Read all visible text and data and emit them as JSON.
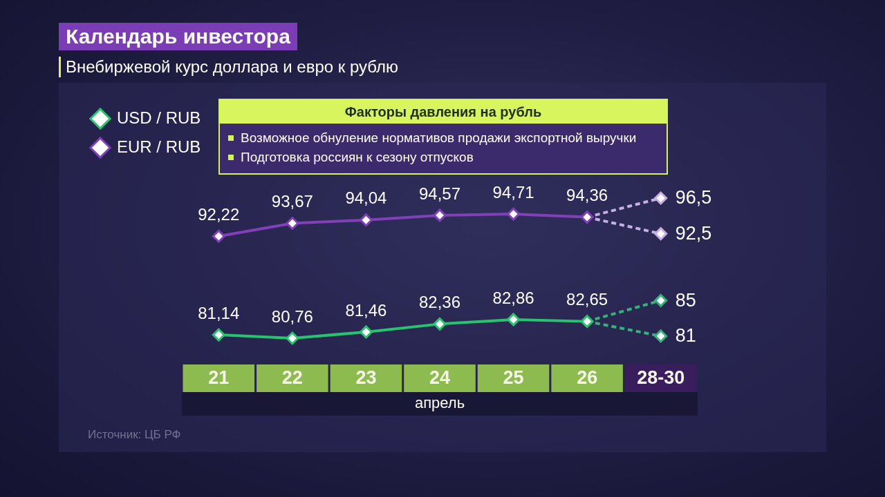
{
  "chart_data": {
    "type": "line",
    "title": "Календарь инвестора",
    "subtitle": "Внебиржевой курс доллара и евро к рублю",
    "xlabel": "апрель",
    "categories": [
      "21",
      "22",
      "23",
      "24",
      "25",
      "26",
      "28-30"
    ],
    "series": [
      {
        "name": "USD / RUB",
        "color": "#27c46e",
        "values": [
          81.14,
          80.76,
          81.46,
          82.36,
          82.86,
          82.65,
          null
        ],
        "value_labels": [
          "81,14",
          "80,76",
          "81,46",
          "82,36",
          "82,86",
          "82,65",
          null
        ]
      },
      {
        "color": "#35b27a",
        "line_style": "dashed",
        "values": [
          null,
          null,
          null,
          null,
          null,
          82.65,
          85
        ],
        "value_labels": [
          null,
          null,
          null,
          null,
          null,
          null,
          "85"
        ]
      },
      {
        "color": "#35b27a",
        "line_style": "dashed",
        "values": [
          null,
          null,
          null,
          null,
          null,
          82.65,
          81
        ],
        "value_labels": [
          null,
          null,
          null,
          null,
          null,
          null,
          "81"
        ]
      },
      {
        "name": "EUR / RUB",
        "color": "#8240b8",
        "values": [
          92.22,
          93.67,
          94.04,
          94.57,
          94.71,
          94.36,
          null
        ],
        "value_labels": [
          "92,22",
          "93,67",
          "94,04",
          "94,57",
          "94,71",
          "94,36",
          null
        ]
      },
      {
        "color": "#c6afe3",
        "line_style": "dashed",
        "values": [
          null,
          null,
          null,
          null,
          null,
          94.36,
          96.5
        ],
        "value_labels": [
          null,
          null,
          null,
          null,
          null,
          null,
          "96,5"
        ]
      },
      {
        "color": "#c6afe3",
        "line_style": "dashed",
        "values": [
          null,
          null,
          null,
          null,
          null,
          94.36,
          92.5
        ],
        "value_labels": [
          null,
          null,
          null,
          null,
          null,
          null,
          "92,5"
        ]
      }
    ],
    "tick_labels": "x",
    "legend": "top left",
    "marker": "diamond",
    "line_style": "solid",
    "annotations": [
      "Факторы давления на рубль",
      "Возможное обнуление нормативов продажи экспортной выручки",
      "Подготовка россиян к сезону отпусков",
      "Источник: ЦБ РФ"
    ]
  }
}
